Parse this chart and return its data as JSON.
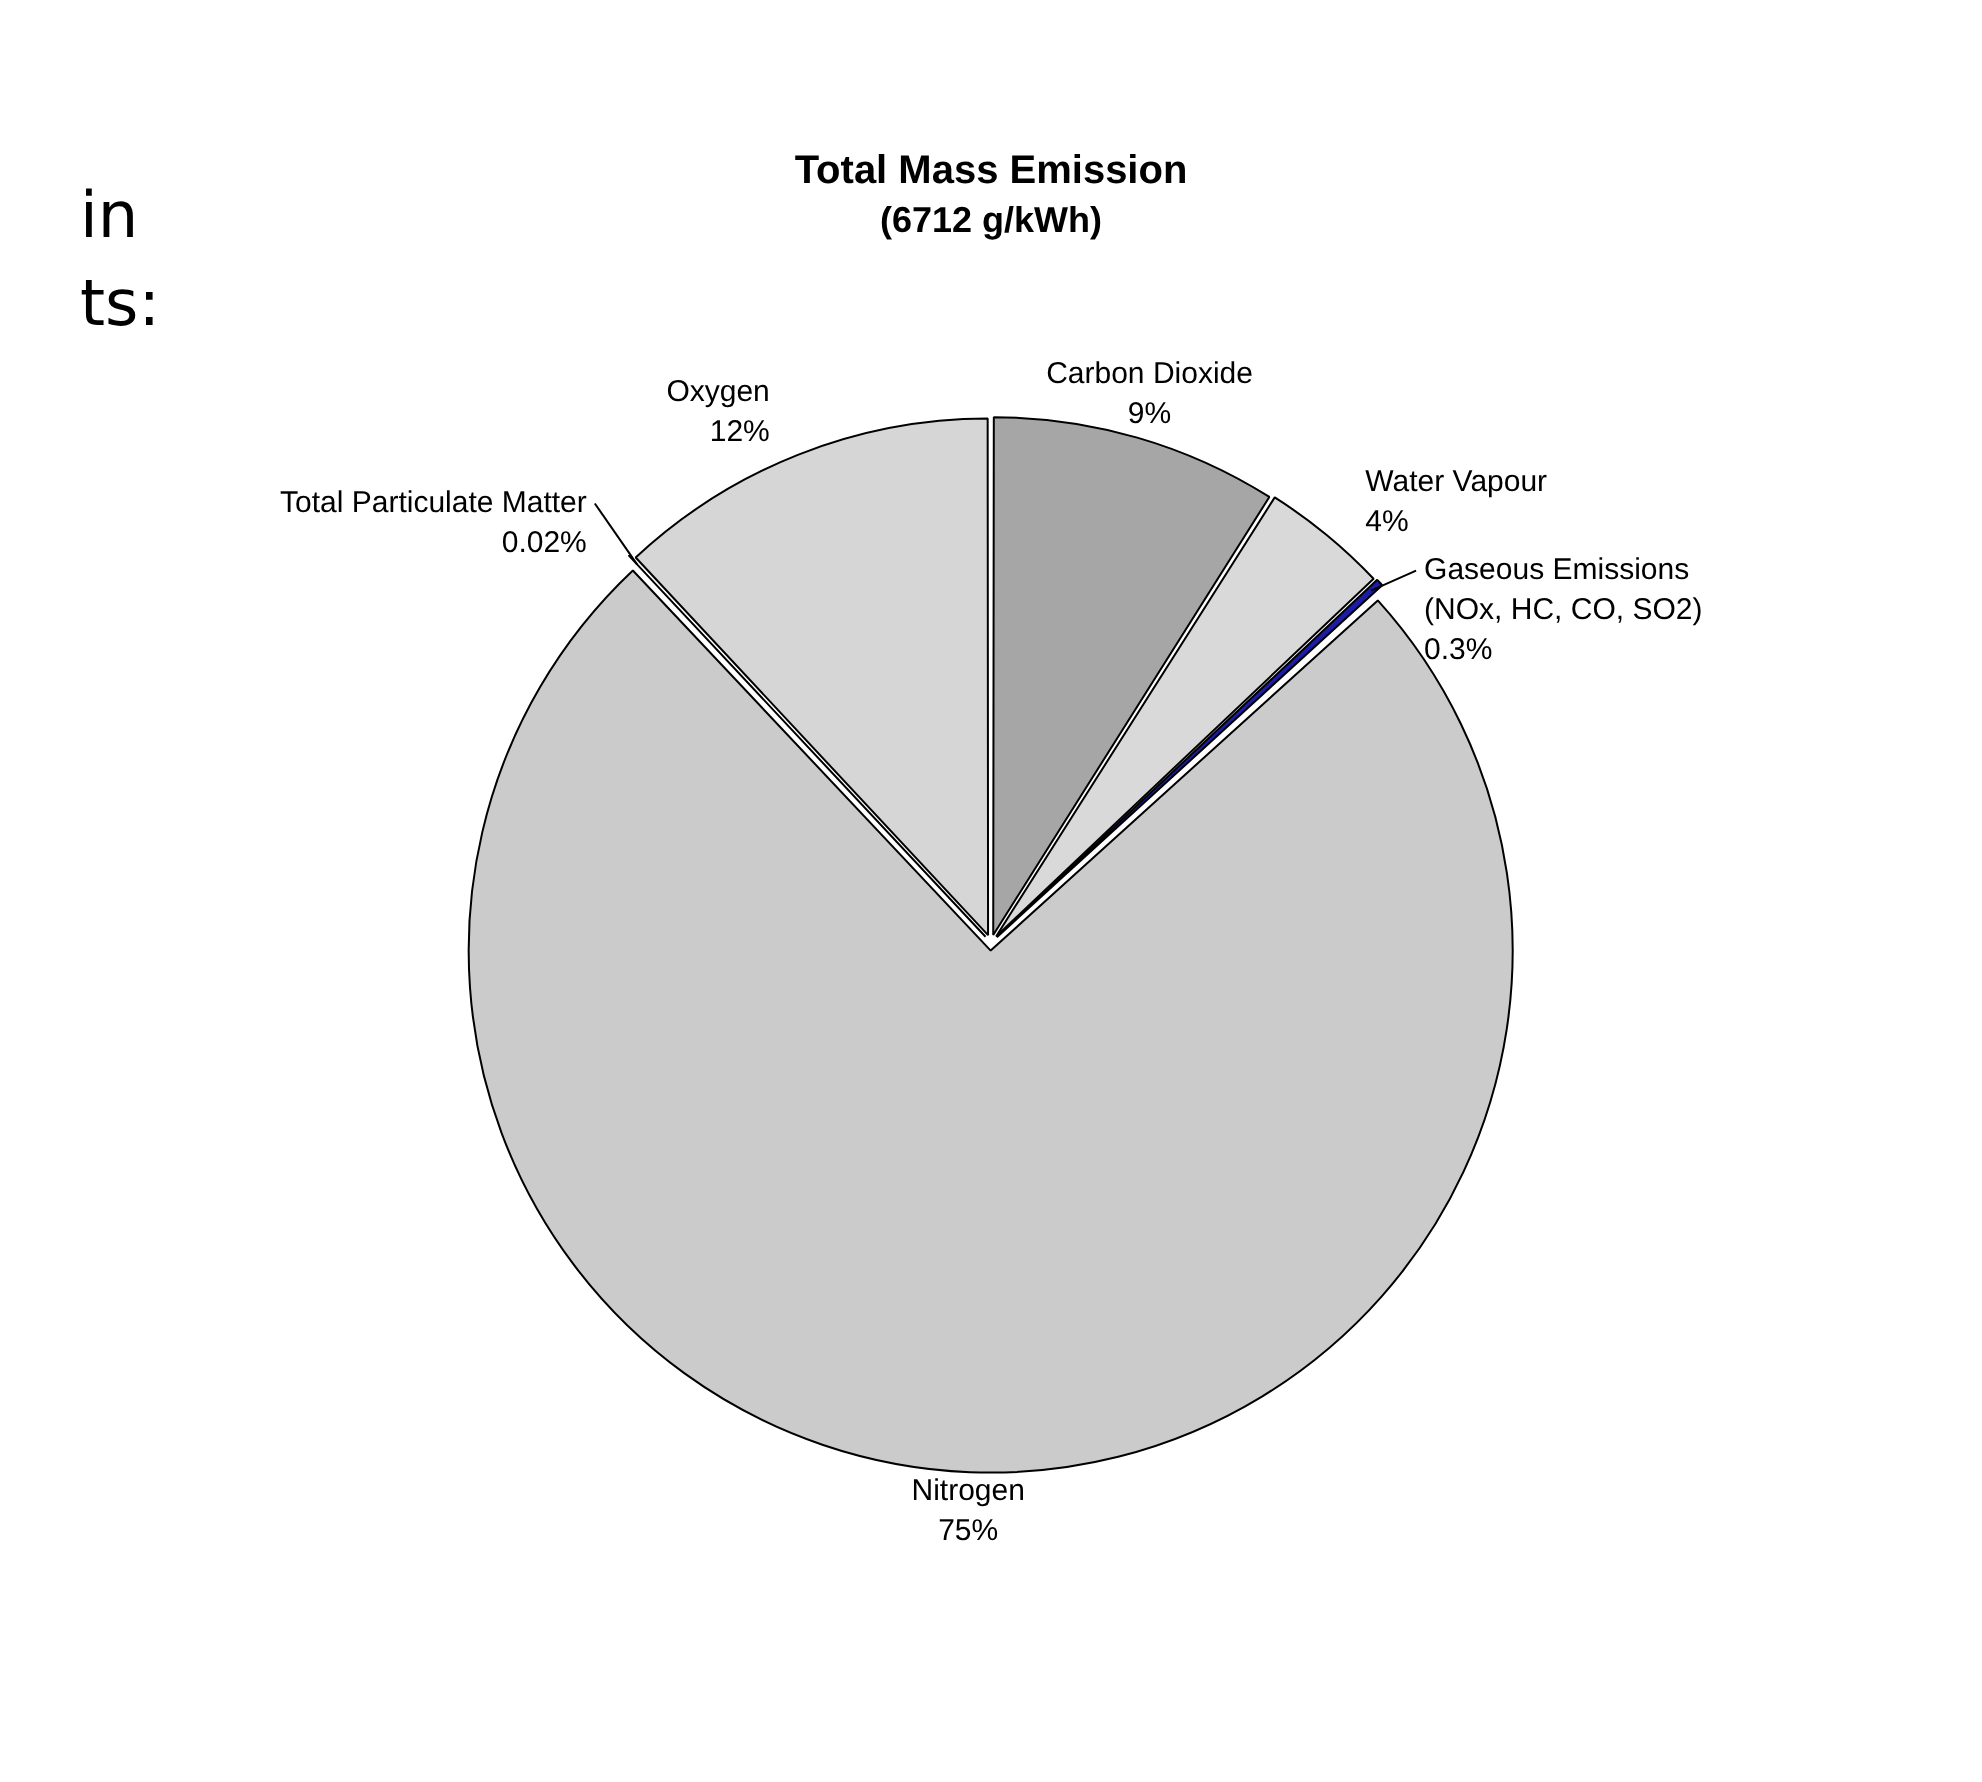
{
  "chart_data": {
    "type": "pie",
    "title": "Total Mass Emission",
    "subtitle": "(6712 g/kWh)",
    "categories": [
      "Carbon Dioxide",
      "Water Vapour",
      "Gaseous Emissions (NOx, HC, CO, SO2)",
      "Nitrogen",
      "Total Particulate Matter",
      "Oxygen"
    ],
    "values": [
      9,
      4,
      0.3,
      75,
      0.02,
      12
    ],
    "value_labels": [
      "9%",
      "4%",
      "0.3%",
      "75%",
      "0.02%",
      "12%"
    ],
    "colors": [
      "#a6a6a6",
      "#d9d9d9",
      "#1c1ca8",
      "#cbcbcb",
      "#f2f2f2",
      "#d6d6d6"
    ],
    "annotations": [
      "in",
      "ts:"
    ],
    "legend": false
  }
}
